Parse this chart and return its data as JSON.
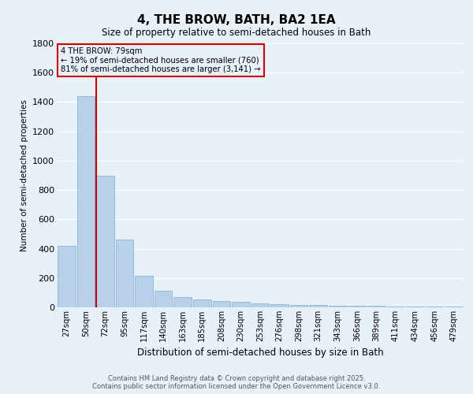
{
  "title": "4, THE BROW, BATH, BA2 1EA",
  "subtitle": "Size of property relative to semi-detached houses in Bath",
  "xlabel": "Distribution of semi-detached houses by size in Bath",
  "ylabel": "Number of semi-detached properties",
  "categories": [
    "27sqm",
    "50sqm",
    "72sqm",
    "95sqm",
    "117sqm",
    "140sqm",
    "163sqm",
    "185sqm",
    "208sqm",
    "230sqm",
    "253sqm",
    "276sqm",
    "298sqm",
    "321sqm",
    "343sqm",
    "366sqm",
    "389sqm",
    "411sqm",
    "434sqm",
    "456sqm",
    "479sqm"
  ],
  "values": [
    420,
    1440,
    900,
    460,
    215,
    115,
    70,
    55,
    45,
    35,
    25,
    20,
    18,
    15,
    12,
    10,
    10,
    8,
    6,
    5,
    4
  ],
  "bar_color": "#b8d0e8",
  "bar_edge_color": "#7aafd4",
  "property_line_index": 2,
  "property_sqm": 79,
  "smaller_pct": 19,
  "smaller_count": 760,
  "larger_pct": 81,
  "larger_count": 3141,
  "annotation_box_color": "#cc0000",
  "ylim": [
    0,
    1800
  ],
  "yticks": [
    0,
    200,
    400,
    600,
    800,
    1000,
    1200,
    1400,
    1600,
    1800
  ],
  "bg_color": "#e8f0f8",
  "grid_color": "#ffffff",
  "footer_line1": "Contains HM Land Registry data © Crown copyright and database right 2025.",
  "footer_line2": "Contains public sector information licensed under the Open Government Licence v3.0."
}
